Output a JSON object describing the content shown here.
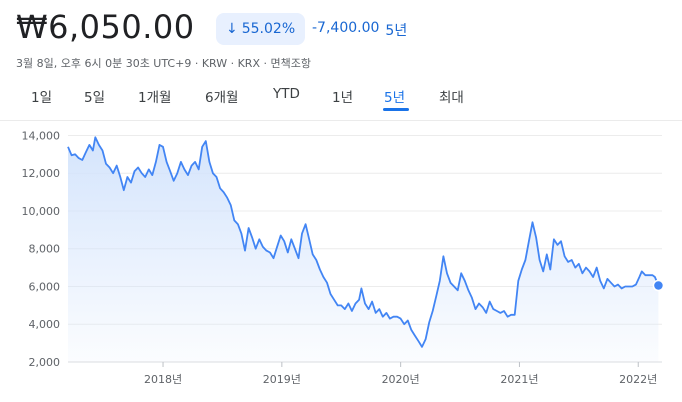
{
  "header": {
    "price": "₩6,050.00",
    "percent_change": "55.02%",
    "change_icon": "arrow-down-icon",
    "abs_change": "-7,400.00",
    "period_label": "5년",
    "meta": "3월 8일, 오후 6시 0분 30초 UTC+9 · KRW · KRX · 면책조항"
  },
  "tabs": [
    {
      "label": "1일",
      "active": false
    },
    {
      "label": "5일",
      "active": false
    },
    {
      "label": "1개월",
      "active": false
    },
    {
      "label": "6개월",
      "active": false
    },
    {
      "label": "YTD",
      "active": false
    },
    {
      "label": "1년",
      "active": false
    },
    {
      "label": "5년",
      "active": true
    },
    {
      "label": "최대",
      "active": false
    }
  ],
  "colors": {
    "accent": "#1a73e8",
    "line": "#4285f4",
    "fill": "#d2e3fc"
  },
  "chart_data": {
    "type": "area",
    "title": "",
    "xlabel": "",
    "ylabel": "",
    "ylim": [
      2000,
      14500
    ],
    "xlim": [
      2017.2,
      2022.2
    ],
    "yticks": [
      2000,
      4000,
      6000,
      8000,
      10000,
      12000,
      14000
    ],
    "ytick_labels": [
      "2,000",
      "4,000",
      "6,000",
      "8,000",
      "10,000",
      "12,000",
      "14,000"
    ],
    "xticks": [
      2018.0,
      2019.0,
      2020.0,
      2021.0,
      2022.0
    ],
    "xtick_labels": [
      "2018년",
      "2019년",
      "2020년",
      "2021년",
      "2022년"
    ],
    "grid": true,
    "series": [
      {
        "points": [
          [
            2017.2,
            13400
          ],
          [
            2017.23,
            12950
          ],
          [
            2017.26,
            13000
          ],
          [
            2017.29,
            12800
          ],
          [
            2017.32,
            12700
          ],
          [
            2017.35,
            13100
          ],
          [
            2017.38,
            13500
          ],
          [
            2017.41,
            13200
          ],
          [
            2017.43,
            13900
          ],
          [
            2017.46,
            13500
          ],
          [
            2017.49,
            13200
          ],
          [
            2017.52,
            12500
          ],
          [
            2017.55,
            12300
          ],
          [
            2017.58,
            12000
          ],
          [
            2017.61,
            12400
          ],
          [
            2017.64,
            11800
          ],
          [
            2017.67,
            11100
          ],
          [
            2017.7,
            11800
          ],
          [
            2017.73,
            11500
          ],
          [
            2017.76,
            12100
          ],
          [
            2017.79,
            12300
          ],
          [
            2017.82,
            12000
          ],
          [
            2017.85,
            11800
          ],
          [
            2017.88,
            12200
          ],
          [
            2017.91,
            11900
          ],
          [
            2017.94,
            12600
          ],
          [
            2017.97,
            13500
          ],
          [
            2018.0,
            13400
          ],
          [
            2018.03,
            12600
          ],
          [
            2018.06,
            12100
          ],
          [
            2018.09,
            11600
          ],
          [
            2018.12,
            12000
          ],
          [
            2018.15,
            12600
          ],
          [
            2018.18,
            12200
          ],
          [
            2018.21,
            11900
          ],
          [
            2018.24,
            12400
          ],
          [
            2018.27,
            12600
          ],
          [
            2018.3,
            12200
          ],
          [
            2018.33,
            13400
          ],
          [
            2018.36,
            13700
          ],
          [
            2018.39,
            12600
          ],
          [
            2018.42,
            12000
          ],
          [
            2018.45,
            11800
          ],
          [
            2018.48,
            11200
          ],
          [
            2018.51,
            11000
          ],
          [
            2018.54,
            10700
          ],
          [
            2018.57,
            10300
          ],
          [
            2018.6,
            9500
          ],
          [
            2018.63,
            9300
          ],
          [
            2018.66,
            8800
          ],
          [
            2018.69,
            7900
          ],
          [
            2018.72,
            9100
          ],
          [
            2018.75,
            8600
          ],
          [
            2018.78,
            8000
          ],
          [
            2018.81,
            8500
          ],
          [
            2018.84,
            8100
          ],
          [
            2018.87,
            7900
          ],
          [
            2018.9,
            7800
          ],
          [
            2018.93,
            7500
          ],
          [
            2018.96,
            8100
          ],
          [
            2018.99,
            8700
          ],
          [
            2019.02,
            8400
          ],
          [
            2019.05,
            7800
          ],
          [
            2019.08,
            8500
          ],
          [
            2019.11,
            8000
          ],
          [
            2019.14,
            7500
          ],
          [
            2019.17,
            8800
          ],
          [
            2019.2,
            9300
          ],
          [
            2019.23,
            8500
          ],
          [
            2019.26,
            7700
          ],
          [
            2019.29,
            7400
          ],
          [
            2019.32,
            6900
          ],
          [
            2019.35,
            6500
          ],
          [
            2019.38,
            6200
          ],
          [
            2019.41,
            5600
          ],
          [
            2019.44,
            5300
          ],
          [
            2019.47,
            5000
          ],
          [
            2019.5,
            5000
          ],
          [
            2019.53,
            4800
          ],
          [
            2019.56,
            5100
          ],
          [
            2019.59,
            4700
          ],
          [
            2019.62,
            5100
          ],
          [
            2019.65,
            5300
          ],
          [
            2019.67,
            5900
          ],
          [
            2019.7,
            5100
          ],
          [
            2019.73,
            4800
          ],
          [
            2019.76,
            5200
          ],
          [
            2019.79,
            4600
          ],
          [
            2019.82,
            4800
          ],
          [
            2019.85,
            4400
          ],
          [
            2019.88,
            4600
          ],
          [
            2019.91,
            4300
          ],
          [
            2019.94,
            4400
          ],
          [
            2019.97,
            4400
          ],
          [
            2020.0,
            4300
          ],
          [
            2020.03,
            4000
          ],
          [
            2020.06,
            4200
          ],
          [
            2020.09,
            3700
          ],
          [
            2020.12,
            3400
          ],
          [
            2020.15,
            3100
          ],
          [
            2020.18,
            2800
          ],
          [
            2020.21,
            3200
          ],
          [
            2020.24,
            4100
          ],
          [
            2020.27,
            4700
          ],
          [
            2020.3,
            5500
          ],
          [
            2020.33,
            6300
          ],
          [
            2020.36,
            7600
          ],
          [
            2020.39,
            6700
          ],
          [
            2020.42,
            6200
          ],
          [
            2020.45,
            6000
          ],
          [
            2020.48,
            5800
          ],
          [
            2020.51,
            6700
          ],
          [
            2020.54,
            6300
          ],
          [
            2020.57,
            5800
          ],
          [
            2020.6,
            5400
          ],
          [
            2020.63,
            4800
          ],
          [
            2020.66,
            5100
          ],
          [
            2020.69,
            4900
          ],
          [
            2020.72,
            4600
          ],
          [
            2020.75,
            5200
          ],
          [
            2020.78,
            4800
          ],
          [
            2020.81,
            4700
          ],
          [
            2020.84,
            4600
          ],
          [
            2020.87,
            4700
          ],
          [
            2020.9,
            4400
          ],
          [
            2020.93,
            4500
          ],
          [
            2020.96,
            4500
          ],
          [
            2020.99,
            6300
          ],
          [
            2021.02,
            6900
          ],
          [
            2021.05,
            7400
          ],
          [
            2021.08,
            8400
          ],
          [
            2021.11,
            9400
          ],
          [
            2021.14,
            8600
          ],
          [
            2021.17,
            7400
          ],
          [
            2021.2,
            6800
          ],
          [
            2021.23,
            7700
          ],
          [
            2021.26,
            6900
          ],
          [
            2021.29,
            8500
          ],
          [
            2021.32,
            8200
          ],
          [
            2021.35,
            8400
          ],
          [
            2021.38,
            7600
          ],
          [
            2021.41,
            7300
          ],
          [
            2021.44,
            7400
          ],
          [
            2021.47,
            7000
          ],
          [
            2021.5,
            7200
          ],
          [
            2021.53,
            6700
          ],
          [
            2021.56,
            7000
          ],
          [
            2021.59,
            6800
          ],
          [
            2021.62,
            6500
          ],
          [
            2021.65,
            7000
          ],
          [
            2021.68,
            6300
          ],
          [
            2021.71,
            5900
          ],
          [
            2021.74,
            6400
          ],
          [
            2021.77,
            6200
          ],
          [
            2021.8,
            6000
          ],
          [
            2021.83,
            6100
          ],
          [
            2021.86,
            5900
          ],
          [
            2021.89,
            6000
          ],
          [
            2021.92,
            6000
          ],
          [
            2021.95,
            6000
          ],
          [
            2021.98,
            6100
          ],
          [
            2022.01,
            6500
          ],
          [
            2022.03,
            6800
          ],
          [
            2022.06,
            6600
          ],
          [
            2022.09,
            6600
          ],
          [
            2022.12,
            6600
          ],
          [
            2022.14,
            6500
          ],
          [
            2022.17,
            6050
          ]
        ]
      }
    ]
  }
}
